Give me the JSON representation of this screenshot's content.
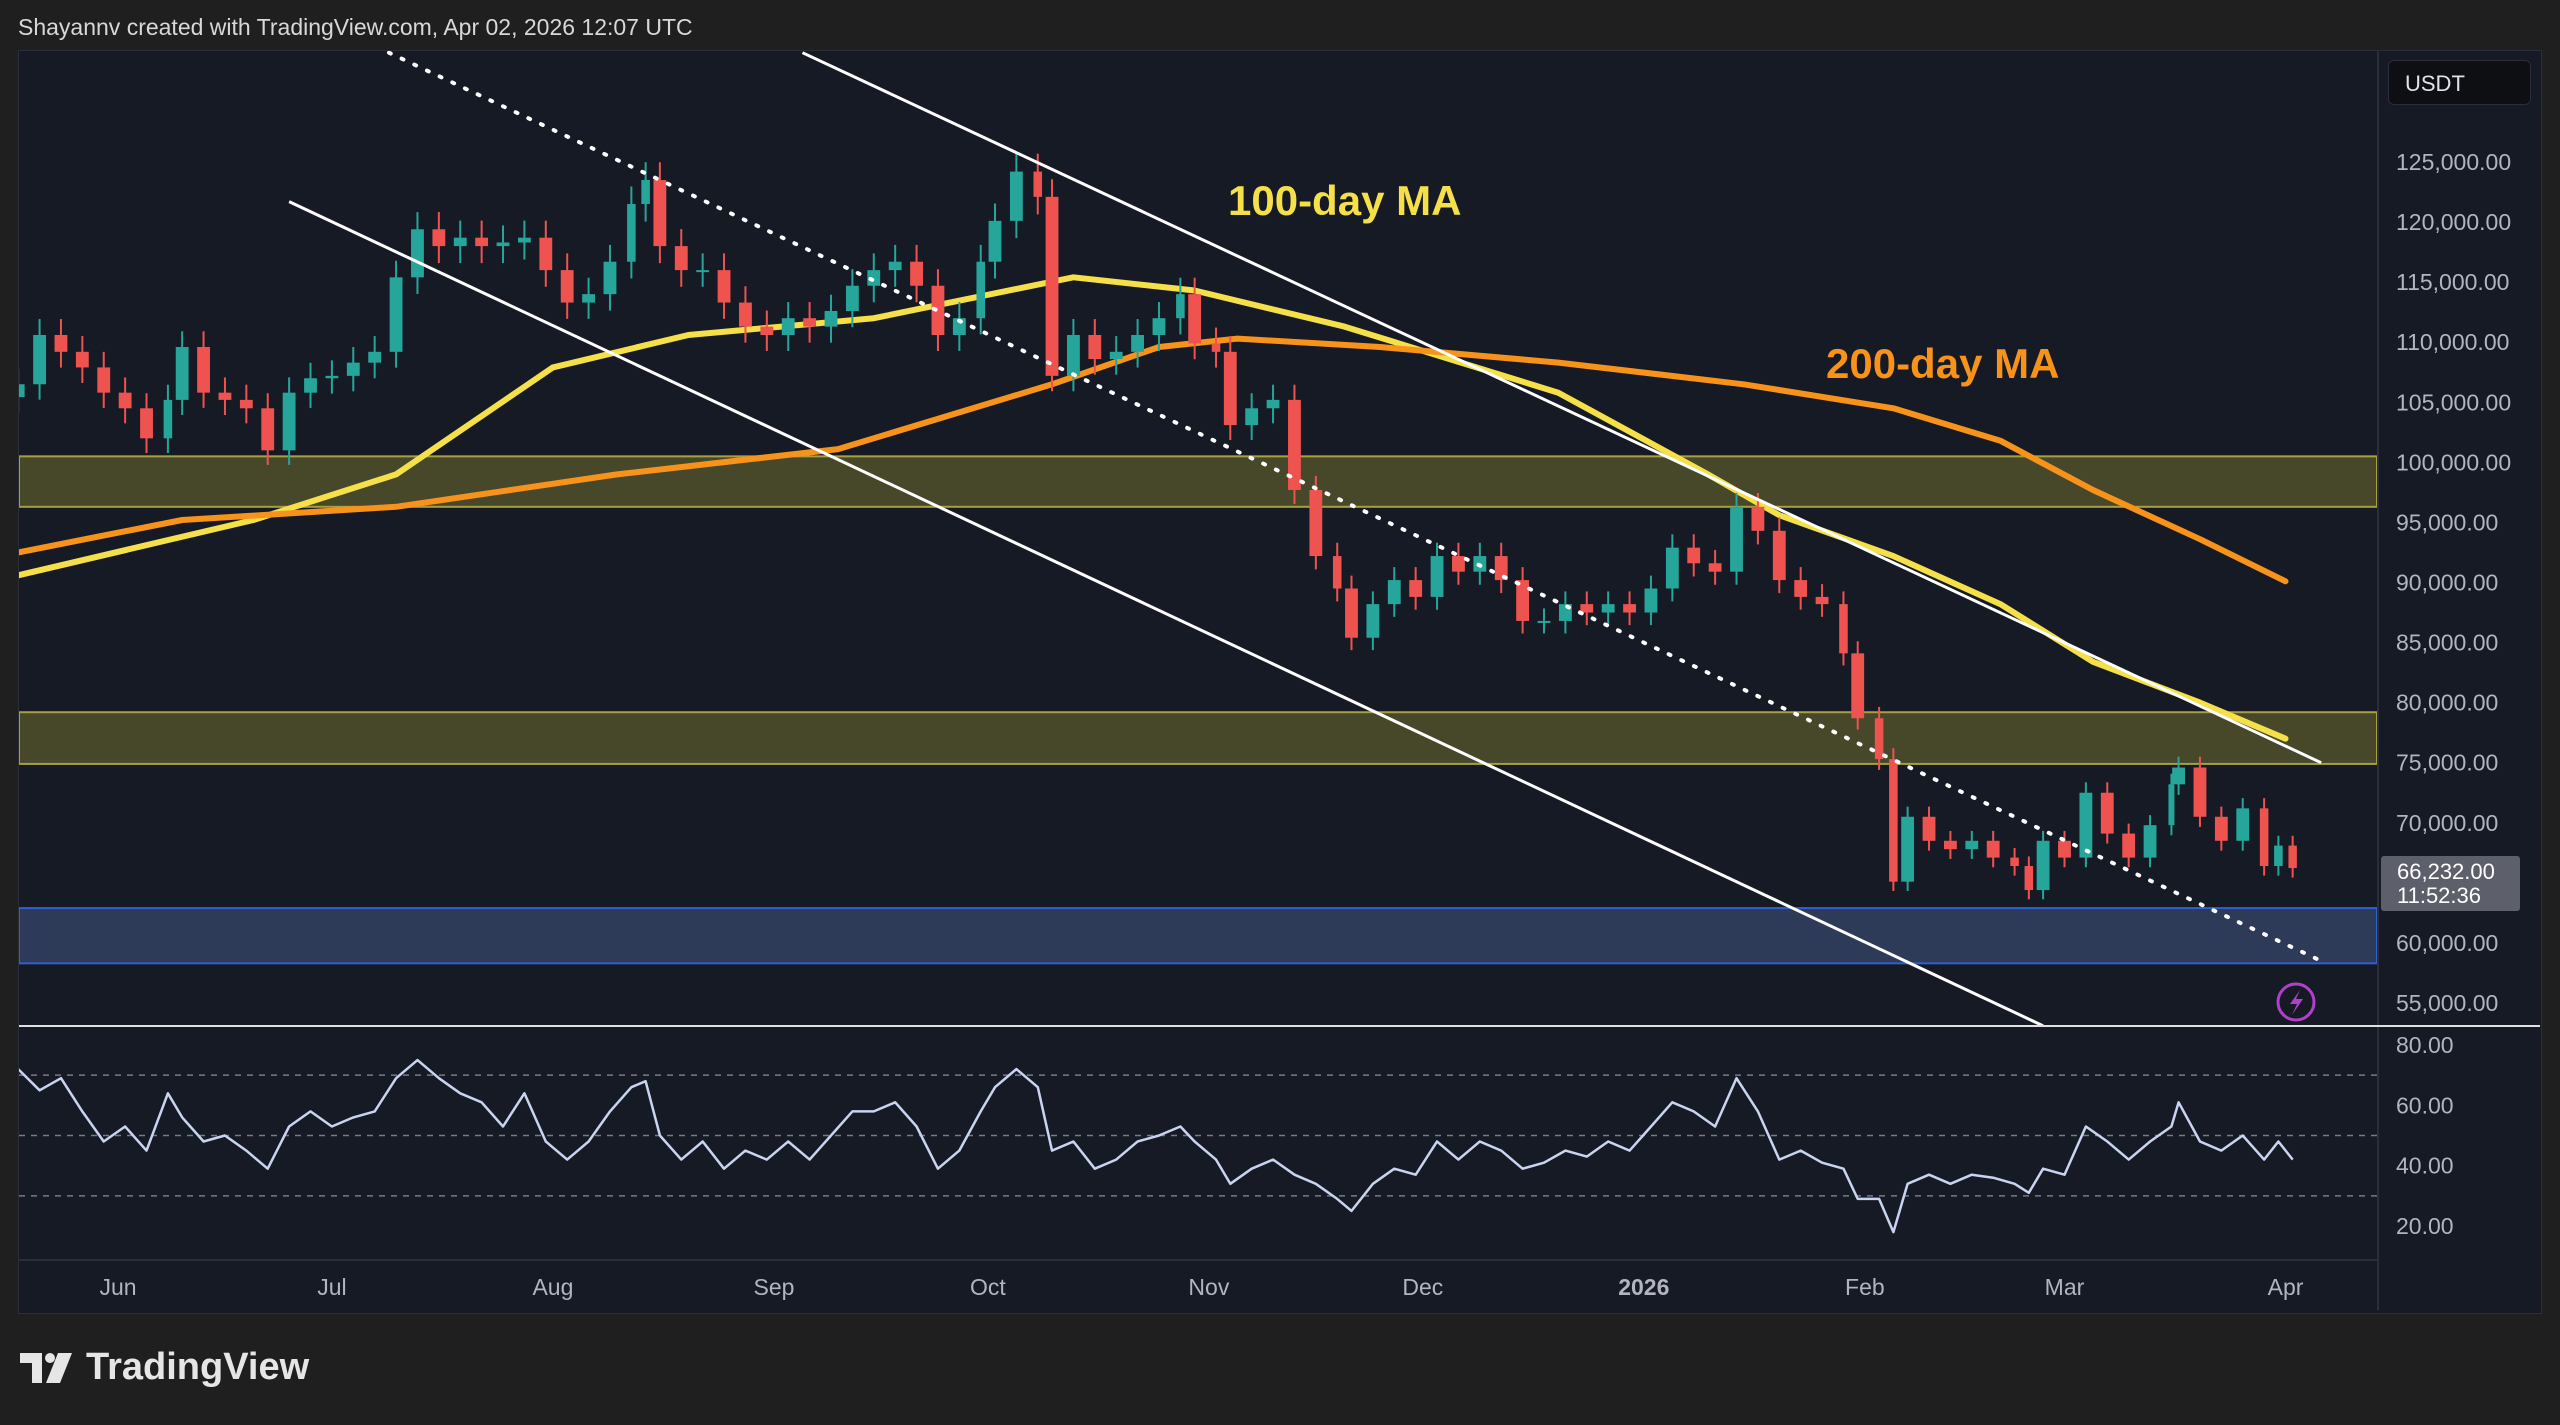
{
  "header": {
    "attribution": "Shayannv created with TradingView.com, Apr 02, 2026 12:07 UTC"
  },
  "footer": {
    "brand": "TradingView"
  },
  "price_scale": {
    "currency": "USDT",
    "last_price": "66,232.00",
    "countdown": "11:52:36"
  },
  "colors": {
    "up": "#26a69a",
    "down": "#ef5350",
    "ma100": "#f5e04a",
    "ma200": "#f7931a",
    "zone_yellow": "#4a4a2a",
    "zone_blue": "#2e3d5c",
    "rsi": "#c8d4f0",
    "alert": "#9c27b0"
  },
  "chart_data": [
    {
      "type": "candlestick",
      "title": "",
      "price_ticks": [
        "125,000.00",
        "120,000.00",
        "115,000.00",
        "110,000.00",
        "105,000.00",
        "100,000.00",
        "95,000.00",
        "90,000.00",
        "85,000.00",
        "80,000.00",
        "75,000.00",
        "70,000.00",
        "60,000.00",
        "55,000.00"
      ],
      "tick_values": [
        125000,
        120000,
        115000,
        110000,
        105000,
        100000,
        95000,
        90000,
        85000,
        80000,
        75000,
        70000,
        60000,
        55000
      ],
      "ylim": [
        52500,
        136000
      ],
      "x_ticks": [
        {
          "label": "Jun",
          "date": "2025-06-01",
          "bold": false
        },
        {
          "label": "Jul",
          "date": "2025-07-01",
          "bold": false
        },
        {
          "label": "Aug",
          "date": "2025-08-01",
          "bold": false
        },
        {
          "label": "Sep",
          "date": "2025-09-01",
          "bold": false
        },
        {
          "label": "Oct",
          "date": "2025-10-01",
          "bold": false
        },
        {
          "label": "Nov",
          "date": "2025-11-01",
          "bold": false
        },
        {
          "label": "Dec",
          "date": "2025-12-01",
          "bold": false
        },
        {
          "label": "2026",
          "date": "2026-01-01",
          "bold": true
        },
        {
          "label": "Feb",
          "date": "2026-02-01",
          "bold": false
        },
        {
          "label": "Mar",
          "date": "2026-03-01",
          "bold": false
        },
        {
          "label": "Apr",
          "date": "2026-04-01",
          "bold": false
        }
      ],
      "dates": [
        "2025-05-18",
        "2025-05-21",
        "2025-05-24",
        "2025-05-27",
        "2025-05-30",
        "2025-06-02",
        "2025-06-05",
        "2025-06-08",
        "2025-06-10",
        "2025-06-13",
        "2025-06-16",
        "2025-06-19",
        "2025-06-22",
        "2025-06-25",
        "2025-06-28",
        "2025-07-01",
        "2025-07-04",
        "2025-07-07",
        "2025-07-10",
        "2025-07-13",
        "2025-07-16",
        "2025-07-19",
        "2025-07-22",
        "2025-07-25",
        "2025-07-28",
        "2025-07-31",
        "2025-08-03",
        "2025-08-06",
        "2025-08-09",
        "2025-08-12",
        "2025-08-14",
        "2025-08-16",
        "2025-08-19",
        "2025-08-22",
        "2025-08-25",
        "2025-08-28",
        "2025-08-31",
        "2025-09-03",
        "2025-09-06",
        "2025-09-09",
        "2025-09-12",
        "2025-09-15",
        "2025-09-18",
        "2025-09-21",
        "2025-09-24",
        "2025-09-27",
        "2025-09-30",
        "2025-10-02",
        "2025-10-05",
        "2025-10-08",
        "2025-10-10",
        "2025-10-13",
        "2025-10-16",
        "2025-10-19",
        "2025-10-22",
        "2025-10-25",
        "2025-10-28",
        "2025-10-30",
        "2025-11-02",
        "2025-11-04",
        "2025-11-07",
        "2025-11-10",
        "2025-11-13",
        "2025-11-16",
        "2025-11-19",
        "2025-11-21",
        "2025-11-24",
        "2025-11-27",
        "2025-11-30",
        "2025-12-03",
        "2025-12-06",
        "2025-12-09",
        "2025-12-12",
        "2025-12-15",
        "2025-12-18",
        "2025-12-21",
        "2025-12-24",
        "2025-12-27",
        "2025-12-30",
        "2026-01-02",
        "2026-01-05",
        "2026-01-08",
        "2026-01-11",
        "2026-01-14",
        "2026-01-17",
        "2026-01-20",
        "2026-01-23",
        "2026-01-26",
        "2026-01-29",
        "2026-01-31",
        "2026-02-03",
        "2026-02-05",
        "2026-02-07",
        "2026-02-10",
        "2026-02-13",
        "2026-02-16",
        "2026-02-19",
        "2026-02-22",
        "2026-02-24",
        "2026-02-26",
        "2026-03-01",
        "2026-03-04",
        "2026-03-07",
        "2026-03-10",
        "2026-03-13",
        "2026-03-16",
        "2026-03-17",
        "2026-03-20",
        "2026-03-23",
        "2026-03-26",
        "2026-03-29",
        "2026-03-31",
        "2026-04-02"
      ],
      "close": [
        106500,
        110600,
        109200,
        107900,
        105800,
        104500,
        102000,
        105200,
        109600,
        105800,
        105200,
        104500,
        101000,
        105800,
        107000,
        107200,
        108300,
        109200,
        115400,
        119400,
        118000,
        118700,
        118000,
        118300,
        118700,
        116000,
        113300,
        114000,
        116700,
        121500,
        123500,
        118000,
        116000,
        116000,
        113300,
        111300,
        110600,
        112000,
        111300,
        112600,
        114700,
        116000,
        116700,
        114700,
        110600,
        112000,
        116700,
        120100,
        124200,
        122100,
        107200,
        110600,
        108600,
        109200,
        110600,
        112000,
        114000,
        109900,
        109200,
        103100,
        104500,
        105200,
        97700,
        92200,
        89500,
        85400,
        88200,
        90200,
        88800,
        92200,
        90900,
        92200,
        90200,
        86800,
        86800,
        88200,
        87500,
        88200,
        87500,
        89500,
        92900,
        91600,
        90900,
        96300,
        94300,
        90200,
        88800,
        88200,
        84100,
        78700,
        75300,
        65100,
        70500,
        68500,
        67800,
        68500,
        67100,
        66400,
        64400,
        68500,
        67100,
        72500,
        69100,
        67100,
        69800,
        73200,
        74600,
        70500,
        68500,
        71200,
        66400,
        68100,
        66232
      ],
      "moving_averages": [
        {
          "name": "100-day MA",
          "color": "#f5e04a",
          "points": [
            [
              "2025-05-18",
              90600
            ],
            [
              "2025-06-20",
              95200
            ],
            [
              "2025-07-10",
              99000
            ],
            [
              "2025-08-01",
              107900
            ],
            [
              "2025-08-20",
              110600
            ],
            [
              "2025-09-15",
              112000
            ],
            [
              "2025-10-13",
              115400
            ],
            [
              "2025-10-30",
              114300
            ],
            [
              "2025-11-20",
              111300
            ],
            [
              "2025-12-20",
              105800
            ],
            [
              "2026-01-10",
              99000
            ],
            [
              "2026-01-20",
              95600
            ],
            [
              "2026-02-05",
              92200
            ],
            [
              "2026-02-20",
              88200
            ],
            [
              "2026-03-05",
              83400
            ],
            [
              "2026-03-20",
              80000
            ],
            [
              "2026-04-01",
              77000
            ]
          ]
        },
        {
          "name": "200-day MA",
          "color": "#f7931a",
          "points": [
            [
              "2025-05-18",
              92500
            ],
            [
              "2025-06-10",
              95200
            ],
            [
              "2025-07-10",
              96300
            ],
            [
              "2025-08-10",
              99000
            ],
            [
              "2025-09-10",
              101100
            ],
            [
              "2025-10-10",
              106500
            ],
            [
              "2025-10-25",
              109600
            ],
            [
              "2025-11-05",
              110300
            ],
            [
              "2025-11-25",
              109600
            ],
            [
              "2025-12-20",
              108300
            ],
            [
              "2026-01-15",
              106500
            ],
            [
              "2026-02-05",
              104500
            ],
            [
              "2026-02-20",
              101800
            ],
            [
              "2026-03-05",
              97700
            ],
            [
              "2026-03-20",
              93600
            ],
            [
              "2026-04-01",
              90100
            ]
          ]
        }
      ],
      "zones": [
        {
          "kind": "resistance",
          "color": "yellow",
          "from": 96300,
          "to": 100500
        },
        {
          "kind": "resistance",
          "color": "yellow",
          "from": 74900,
          "to": 79200
        },
        {
          "kind": "support",
          "color": "blue",
          "from": 58300,
          "to": 62900
        }
      ],
      "trendlines": [
        {
          "style": "solid",
          "from": [
            "2025-09-05",
            134100
          ],
          "to": [
            "2026-04-06",
            75000
          ]
        },
        {
          "style": "solid",
          "from": [
            "2025-06-25",
            121700
          ],
          "to": [
            "2026-02-26",
            53100
          ]
        },
        {
          "style": "dotted",
          "from": [
            "2025-07-09",
            134100
          ],
          "to": [
            "2026-04-06",
            58500
          ]
        }
      ]
    },
    {
      "type": "line",
      "title": "",
      "ylim": [
        10,
        86
      ],
      "y_ticks": [
        "80.00",
        "60.00",
        "40.00",
        "20.00"
      ],
      "tick_values": [
        80,
        60,
        40,
        20
      ],
      "levels": [
        70,
        50,
        30
      ],
      "values": [
        72,
        65,
        69,
        58,
        48,
        53,
        45,
        64,
        56,
        48,
        50,
        45,
        39,
        53,
        58,
        53,
        56,
        58,
        69,
        75,
        69,
        64,
        61,
        53,
        64,
        48,
        42,
        48,
        58,
        66,
        68,
        50,
        42,
        48,
        39,
        45,
        42,
        48,
        42,
        50,
        58,
        58,
        61,
        53,
        39,
        45,
        58,
        66,
        72,
        66,
        45,
        48,
        39,
        42,
        48,
        50,
        53,
        48,
        42,
        34,
        39,
        42,
        37,
        34,
        29,
        25,
        34,
        39,
        37,
        48,
        42,
        48,
        45,
        39,
        41,
        45,
        43,
        48,
        45,
        53,
        61,
        58,
        53,
        69,
        58,
        42,
        45,
        41,
        39,
        29,
        29,
        18,
        34,
        37,
        34,
        37,
        36,
        34,
        31,
        39,
        37,
        53,
        48,
        42,
        48,
        53,
        61,
        48,
        45,
        50,
        42,
        48,
        42
      ]
    }
  ],
  "annotations": {
    "ma100_label": "100-day MA",
    "ma200_label": "200-day MA"
  }
}
